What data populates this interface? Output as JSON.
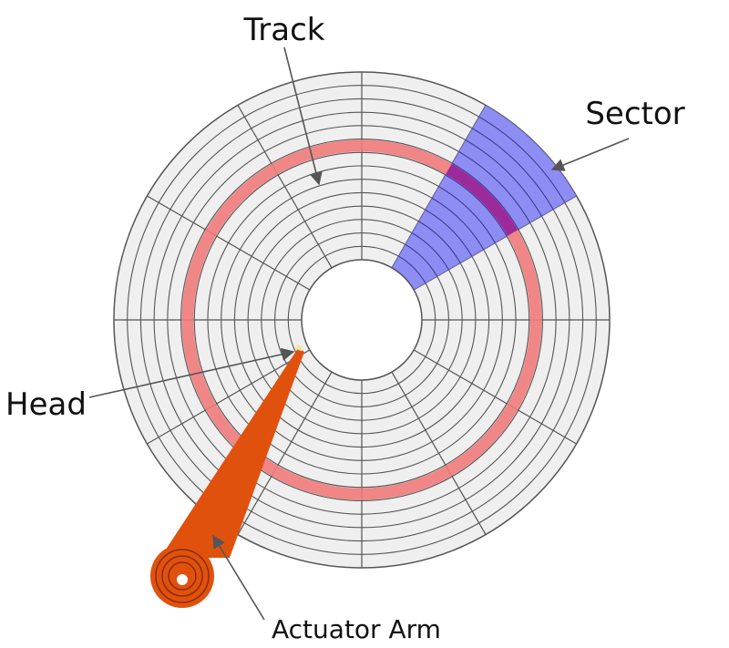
{
  "labels": {
    "track": "Track",
    "sector": "Sector",
    "head": "Head",
    "actuator_arm": "Actuator Arm"
  },
  "colors": {
    "platter": "#efefef",
    "track_lines": "#555555",
    "highlighted_track": "#f07a7a",
    "sector": "#7b7bf5",
    "overlap": "#9d2a9a",
    "actuator_arm": "#e1510e",
    "arrow": "#555555"
  },
  "disk": {
    "track_count": 14,
    "sector_count": 12,
    "highlighted_track_index": 8,
    "highlighted_sector_index": 10
  }
}
